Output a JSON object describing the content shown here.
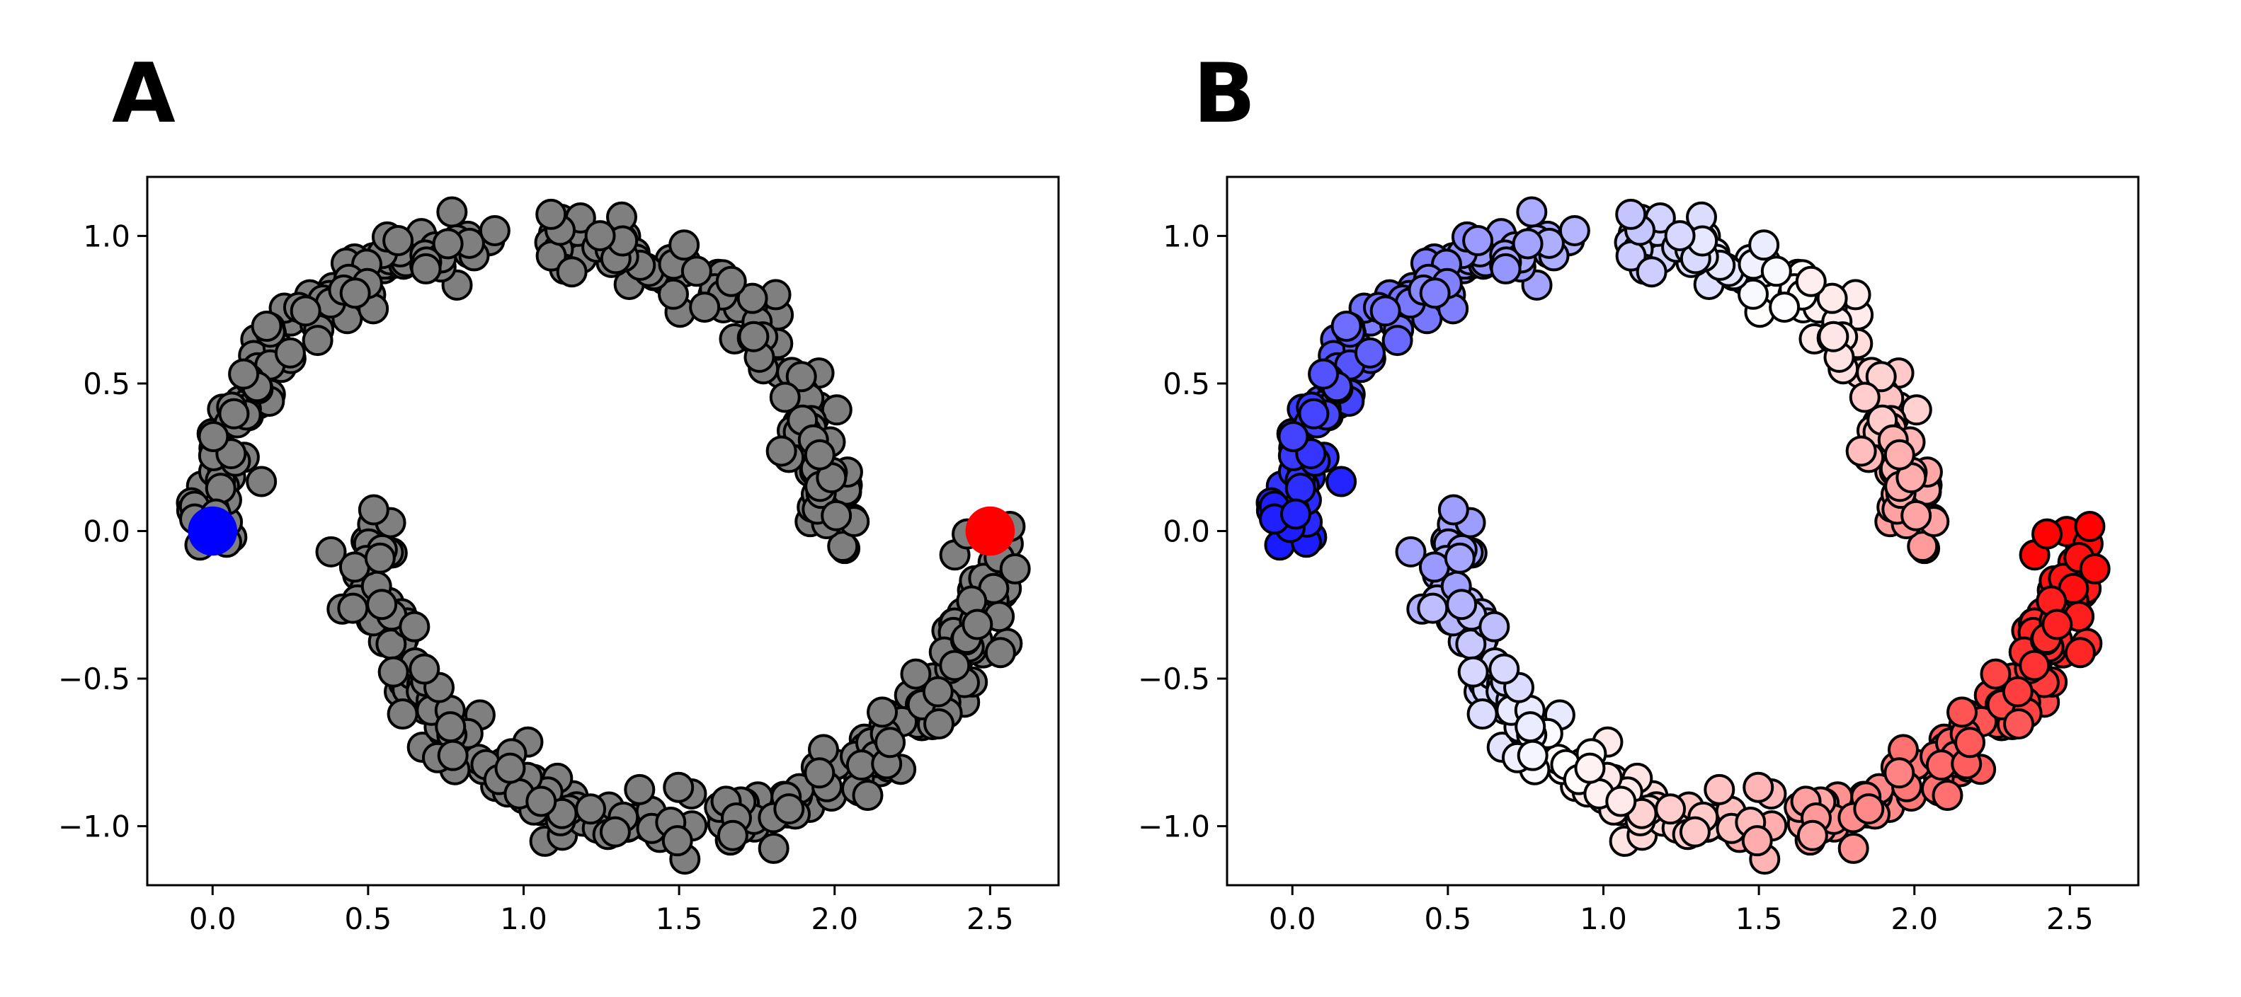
{
  "chart_data": [
    {
      "panel": "A",
      "type": "scatter",
      "title": "",
      "xlabel": "",
      "ylabel": "",
      "xlim": [
        -0.21,
        2.72
      ],
      "ylim": [
        -1.2,
        1.2
      ],
      "xticks": [
        "0.0",
        "0.5",
        "1.0",
        "1.5",
        "2.0",
        "2.5"
      ],
      "xtick_values": [
        0.0,
        0.5,
        1.0,
        1.5,
        2.0,
        2.5
      ],
      "yticks": [
        "−1.0",
        "−0.5",
        "0.0",
        "0.5",
        "1.0"
      ],
      "ytick_values": [
        -1.0,
        -0.5,
        0.0,
        0.5,
        1.0
      ],
      "grid": false,
      "legend": "none",
      "dataset": "two interleaving half-moons, ~500 points with noise ~0.05",
      "point_color": "#7f7f7f",
      "point_edge_color": "#000000",
      "highlighted_points": [
        {
          "x": 0.0,
          "y": 0.0,
          "color": "#0000ff"
        },
        {
          "x": 2.5,
          "y": 0.0,
          "color": "#ff0000"
        }
      ]
    },
    {
      "panel": "B",
      "type": "scatter",
      "title": "",
      "xlabel": "",
      "ylabel": "",
      "xlim": [
        -0.21,
        2.72
      ],
      "ylim": [
        -1.2,
        1.2
      ],
      "xticks": [
        "0.0",
        "0.5",
        "1.0",
        "1.5",
        "2.0",
        "2.5"
      ],
      "xtick_values": [
        0.0,
        0.5,
        1.0,
        1.5,
        2.0,
        2.5
      ],
      "yticks": [
        "−1.0",
        "−0.5",
        "0.0",
        "0.5",
        "1.0"
      ],
      "ytick_values": [
        -1.0,
        -0.5,
        0.0,
        0.5,
        1.0
      ],
      "grid": false,
      "legend": "none",
      "dataset": "same two half-moons as panel A",
      "colormap": "bwr",
      "color_encoding": "diverging blue-white-red along each moon, blue near (0,0), white around x≈1.25–1.35, red near (2.5,0)",
      "point_edge_color": "#000000"
    }
  ]
}
